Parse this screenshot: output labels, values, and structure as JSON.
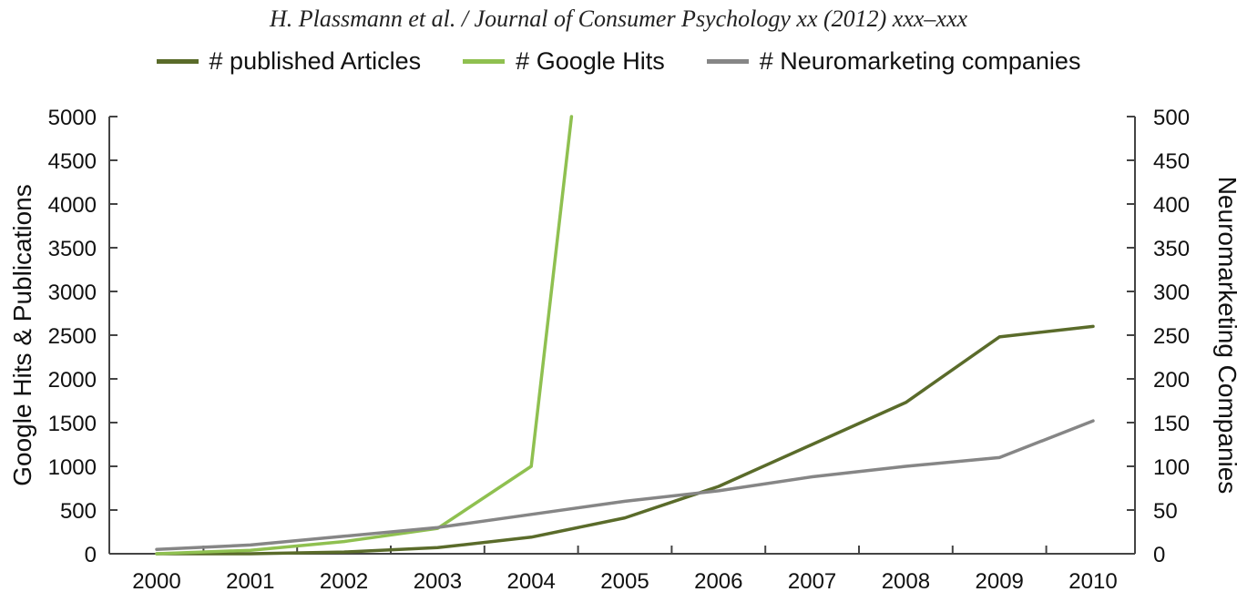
{
  "header": {
    "text": "H. Plassmann et al. / Journal of Consumer Psychology xx (2012) xxx–xxx"
  },
  "chart_data": {
    "type": "line",
    "title": "",
    "x": [
      "2000",
      "2001",
      "2002",
      "2003",
      "2004",
      "2005",
      "2006",
      "2007",
      "2008",
      "2009",
      "2010"
    ],
    "ylabel": "Google Hits & Publications",
    "y2label": "Neuromarketing Companies",
    "ylim": [
      0,
      5000
    ],
    "y2lim": [
      0,
      500
    ],
    "yticks": [
      0,
      500,
      1000,
      1500,
      2000,
      2500,
      3000,
      3500,
      4000,
      4500,
      5000
    ],
    "y2ticks": [
      0,
      50,
      100,
      150,
      200,
      250,
      300,
      350,
      400,
      450,
      500
    ],
    "grid": false,
    "legend_position": "top",
    "series": [
      {
        "name": "# published Articles",
        "axis": "left",
        "color": "#5a6b2a",
        "points": [
          [
            2000,
            0
          ],
          [
            2001,
            0
          ],
          [
            2002,
            20
          ],
          [
            2003,
            70
          ],
          [
            2004,
            190
          ],
          [
            2005,
            410
          ],
          [
            2006,
            770
          ],
          [
            2007,
            1250
          ],
          [
            2008,
            1730
          ],
          [
            2009,
            2480
          ],
          [
            2010,
            2600
          ]
        ]
      },
      {
        "name": "# Google Hits",
        "axis": "left",
        "color": "#8fc050",
        "points": [
          [
            2000,
            0
          ],
          [
            2001,
            40
          ],
          [
            2002,
            140
          ],
          [
            2003,
            290
          ],
          [
            2004,
            1000
          ],
          [
            2004.43,
            5000
          ]
        ]
      },
      {
        "name": "# Neuromarketing companies",
        "axis": "right",
        "color": "#868686",
        "points": [
          [
            2000,
            5
          ],
          [
            2001,
            10
          ],
          [
            2002,
            20
          ],
          [
            2003,
            30
          ],
          [
            2004,
            45
          ],
          [
            2005,
            60
          ],
          [
            2006,
            72
          ],
          [
            2007,
            88
          ],
          [
            2008,
            100
          ],
          [
            2009,
            110
          ],
          [
            2010,
            152
          ]
        ]
      }
    ]
  }
}
